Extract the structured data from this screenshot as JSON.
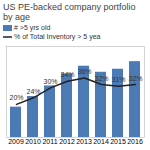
{
  "chart_data": {
    "type": "bar",
    "title": "US PE-backed company portfolio by age",
    "categories": [
      "2009",
      "2010",
      "2011",
      "2012",
      "2013",
      "2014",
      "2015",
      "2016"
    ],
    "series": [
      {
        "name": "# >5 yrs old",
        "type": "bar",
        "color": "#4c7ab5",
        "values": [
          1.0,
          1.35,
          1.7,
          2.1,
          2.35,
          2.15,
          2.25,
          2.5
        ]
      },
      {
        "name": "% of Total Inventory > 5 yea",
        "type": "line",
        "axis": "y2",
        "color": "#222222",
        "values": [
          20,
          24,
          30,
          34,
          36,
          32,
          31,
          32
        ],
        "value_labels": [
          "20%",
          "24%",
          "30%",
          "34%",
          "36%",
          "32%",
          "31%",
          "32%"
        ],
        "data_labels": true
      }
    ],
    "ylim": [
      0,
      3.0
    ],
    "y2lim": [
      0,
      55
    ],
    "tick_labels": "x",
    "legend": "top"
  }
}
